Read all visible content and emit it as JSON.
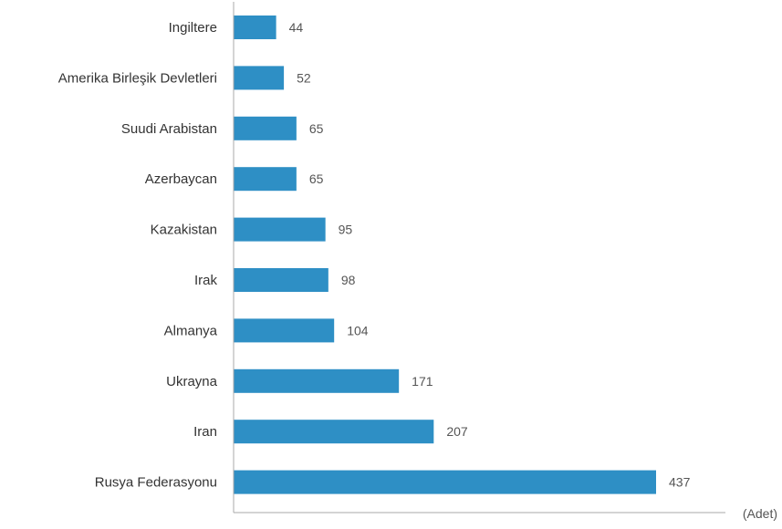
{
  "chart_data": {
    "type": "bar",
    "orientation": "horizontal",
    "categories": [
      "Ingiltere",
      "Amerika Birleşik Devletleri",
      "Suudi Arabistan",
      "Azerbaycan",
      "Kazakistan",
      "Irak",
      "Almanya",
      "Ukrayna",
      "Iran",
      "Rusya Federasyonu"
    ],
    "values": [
      44,
      52,
      65,
      65,
      95,
      98,
      104,
      171,
      207,
      437
    ],
    "unit_label": "(Adet)",
    "title": "",
    "xlabel": "",
    "ylabel": "",
    "xlim": [
      0,
      500
    ],
    "bar_color": "#2e8fc5",
    "axis_color": "#aaaaaa",
    "grid": false,
    "legend": "none"
  }
}
